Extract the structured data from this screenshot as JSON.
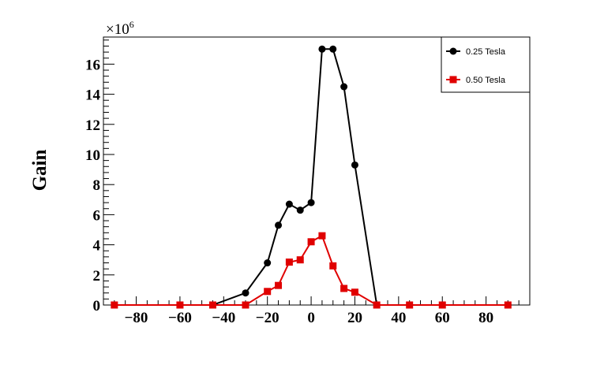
{
  "chart_data": {
    "type": "line",
    "title": "",
    "xlabel": "",
    "ylabel": "Gain",
    "y_multiplier": {
      "base": "×10",
      "exponent": "6"
    },
    "xlim": [
      -95,
      100
    ],
    "ylim": [
      0,
      17.8
    ],
    "x_ticks": [
      -80,
      -60,
      -40,
      -20,
      0,
      20,
      40,
      60,
      80
    ],
    "x_tick_labels": [
      "−80",
      "−60",
      "−40",
      "−20",
      "0",
      "20",
      "40",
      "60",
      "80"
    ],
    "y_ticks": [
      0,
      2,
      4,
      6,
      8,
      10,
      12,
      14,
      16
    ],
    "y_tick_labels": [
      "0",
      "2",
      "4",
      "6",
      "8",
      "10",
      "12",
      "14",
      "16"
    ],
    "grid": false,
    "legend_placement": "top-right",
    "series": [
      {
        "name": "0.25 Tesla",
        "color": "#000000",
        "marker": "circle",
        "x": [
          -90,
          -60,
          -45,
          -30,
          -20,
          -15,
          -10,
          -5,
          0,
          5,
          10,
          15,
          20,
          30,
          45,
          60,
          90
        ],
        "y": [
          0,
          0,
          0,
          0.8,
          2.8,
          5.3,
          6.7,
          6.3,
          6.8,
          17.0,
          17.0,
          14.5,
          9.3,
          0,
          0,
          0,
          0
        ]
      },
      {
        "name": "0.50 Tesla",
        "color": "#e00000",
        "marker": "square",
        "x": [
          -90,
          -60,
          -45,
          -30,
          -20,
          -15,
          -10,
          -5,
          0,
          5,
          10,
          15,
          20,
          30,
          45,
          60,
          90
        ],
        "y": [
          0,
          0,
          0,
          0,
          0.9,
          1.3,
          2.85,
          3.0,
          4.2,
          4.6,
          2.6,
          1.1,
          0.85,
          0,
          0,
          0,
          0
        ]
      }
    ]
  }
}
